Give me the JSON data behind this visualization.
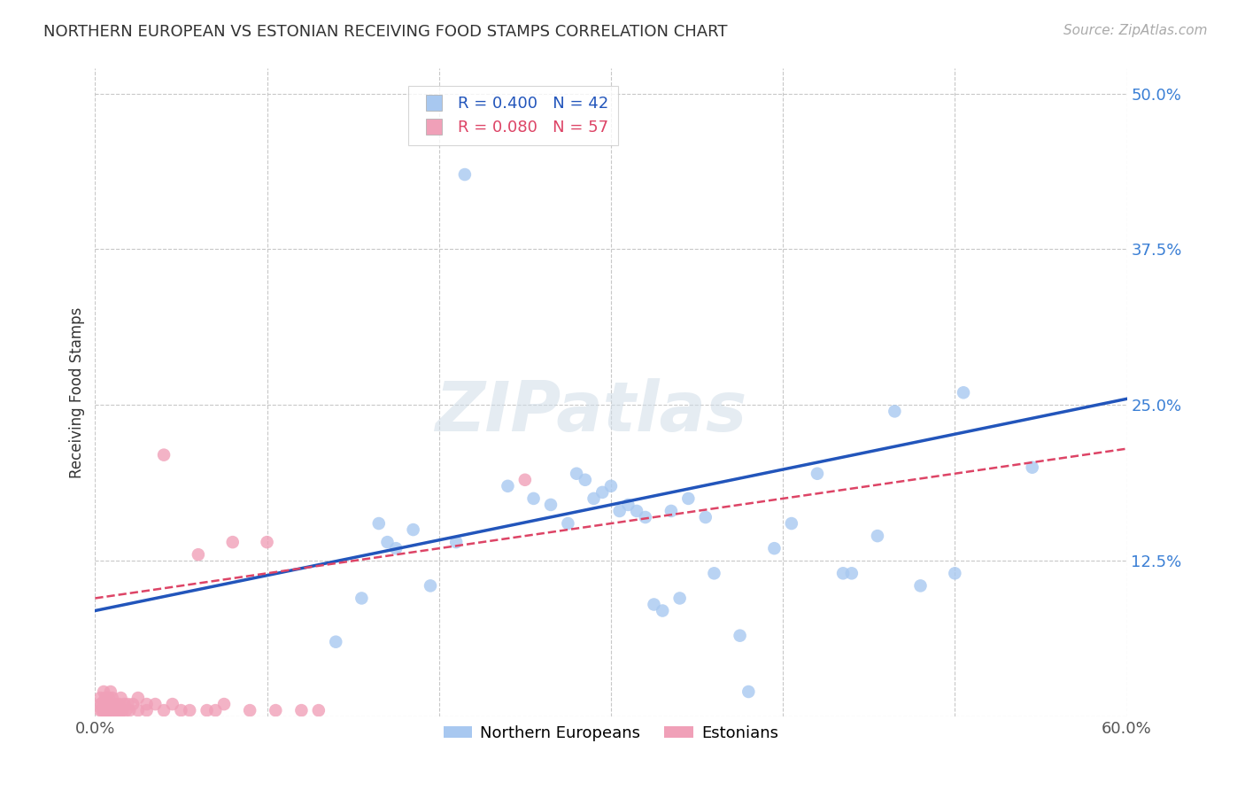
{
  "title": "NORTHERN EUROPEAN VS ESTONIAN RECEIVING FOOD STAMPS CORRELATION CHART",
  "source": "Source: ZipAtlas.com",
  "ylabel": "Receiving Food Stamps",
  "xlim": [
    0.0,
    0.6
  ],
  "ylim": [
    0.0,
    0.52
  ],
  "ytick_positions": [
    0.0,
    0.125,
    0.25,
    0.375,
    0.5
  ],
  "grid_color": "#c8c8c8",
  "background_color": "#ffffff",
  "blue_color": "#a8c8f0",
  "pink_color": "#f0a0b8",
  "blue_line_color": "#2255bb",
  "pink_line_color": "#dd4466",
  "legend_R_blue": "0.400",
  "legend_N_blue": "42",
  "legend_R_pink": "0.080",
  "legend_N_pink": "57",
  "legend_label_blue": "Northern Europeans",
  "legend_label_pink": "Estonians",
  "blue_line_x0": 0.0,
  "blue_line_y0": 0.085,
  "blue_line_x1": 0.6,
  "blue_line_y1": 0.255,
  "pink_line_x0": 0.0,
  "pink_line_x1": 0.6,
  "pink_line_y0": 0.095,
  "pink_line_y1": 0.215,
  "blue_x": [
    0.14,
    0.155,
    0.165,
    0.17,
    0.175,
    0.185,
    0.195,
    0.21,
    0.215,
    0.24,
    0.255,
    0.265,
    0.275,
    0.28,
    0.285,
    0.29,
    0.295,
    0.3,
    0.305,
    0.31,
    0.315,
    0.32,
    0.325,
    0.33,
    0.335,
    0.34,
    0.345,
    0.355,
    0.36,
    0.375,
    0.38,
    0.395,
    0.405,
    0.42,
    0.435,
    0.44,
    0.455,
    0.465,
    0.48,
    0.5,
    0.505,
    0.545
  ],
  "blue_y": [
    0.06,
    0.095,
    0.155,
    0.14,
    0.135,
    0.15,
    0.105,
    0.14,
    0.435,
    0.185,
    0.175,
    0.17,
    0.155,
    0.195,
    0.19,
    0.175,
    0.18,
    0.185,
    0.165,
    0.17,
    0.165,
    0.16,
    0.09,
    0.085,
    0.165,
    0.095,
    0.175,
    0.16,
    0.115,
    0.065,
    0.02,
    0.135,
    0.155,
    0.195,
    0.115,
    0.115,
    0.145,
    0.245,
    0.105,
    0.115,
    0.26,
    0.2
  ],
  "pink_x": [
    0.003,
    0.003,
    0.003,
    0.004,
    0.004,
    0.005,
    0.005,
    0.005,
    0.005,
    0.006,
    0.006,
    0.006,
    0.007,
    0.007,
    0.007,
    0.008,
    0.008,
    0.008,
    0.009,
    0.009,
    0.009,
    0.01,
    0.01,
    0.01,
    0.012,
    0.012,
    0.013,
    0.014,
    0.015,
    0.015,
    0.016,
    0.017,
    0.018,
    0.019,
    0.02,
    0.022,
    0.025,
    0.025,
    0.03,
    0.03,
    0.035,
    0.04,
    0.04,
    0.045,
    0.05,
    0.055,
    0.06,
    0.065,
    0.07,
    0.075,
    0.08,
    0.09,
    0.1,
    0.105,
    0.12,
    0.13,
    0.25
  ],
  "pink_y": [
    0.005,
    0.01,
    0.015,
    0.005,
    0.01,
    0.005,
    0.008,
    0.012,
    0.02,
    0.005,
    0.01,
    0.015,
    0.005,
    0.01,
    0.015,
    0.005,
    0.01,
    0.015,
    0.005,
    0.01,
    0.02,
    0.005,
    0.01,
    0.015,
    0.005,
    0.01,
    0.005,
    0.01,
    0.005,
    0.015,
    0.005,
    0.01,
    0.005,
    0.01,
    0.005,
    0.01,
    0.005,
    0.015,
    0.005,
    0.01,
    0.01,
    0.21,
    0.005,
    0.01,
    0.005,
    0.005,
    0.13,
    0.005,
    0.005,
    0.01,
    0.14,
    0.005,
    0.14,
    0.005,
    0.005,
    0.005,
    0.19
  ]
}
